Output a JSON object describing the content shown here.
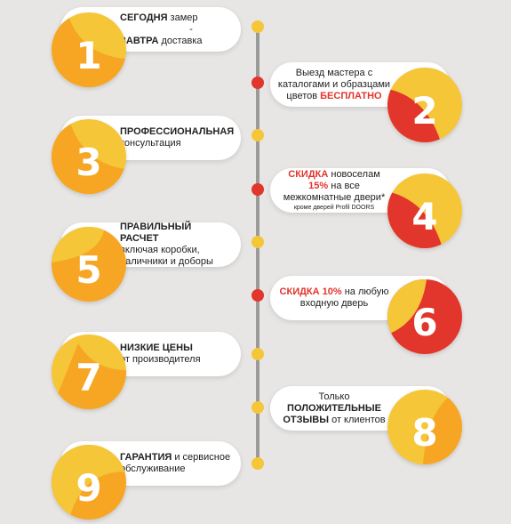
{
  "colors": {
    "yellow": "#f5c637",
    "orange": "#f6a623",
    "red": "#e2352b",
    "line": "#9a9a9a"
  },
  "items": [
    {
      "num": "1",
      "b1": "СЕГОДНЯ",
      "t1": " замер",
      "t2": "-",
      "b2": "ЗАВТРА",
      "t3": " доставка"
    },
    {
      "num": "2",
      "t1": "Выезд мастера с каталогами и образцами цветов ",
      "r1": "БЕСПЛАТНО"
    },
    {
      "num": "3",
      "b1": "ПРОФЕССИОНАЛЬНАЯ",
      "t1": "консультация"
    },
    {
      "num": "4",
      "r1": "СКИДКА",
      "t1": " новоселам ",
      "r2": "15%",
      "t2": " на все межкомнатные двери*",
      "small": "кроме дверей Profil DOORS"
    },
    {
      "num": "5",
      "b1": "ПРАВИЛЬНЫЙ РАСЧЕТ",
      "t1": "включая коробки, наличники и доборы"
    },
    {
      "num": "6",
      "r1": "СКИДКА 10%",
      "t1": " на любую входную дверь"
    },
    {
      "num": "7",
      "b1": "НИЗКИЕ ЦЕНЫ",
      "t1": "от производителя"
    },
    {
      "num": "8",
      "t1": "Только",
      "b1": "ПОЛОЖИТЕЛЬНЫЕ ОТЗЫВЫ",
      "t2": " от клиентов"
    },
    {
      "num": "9",
      "b1": "ГАРАНТИЯ",
      "t1": " и сервисное обслуживание"
    }
  ]
}
